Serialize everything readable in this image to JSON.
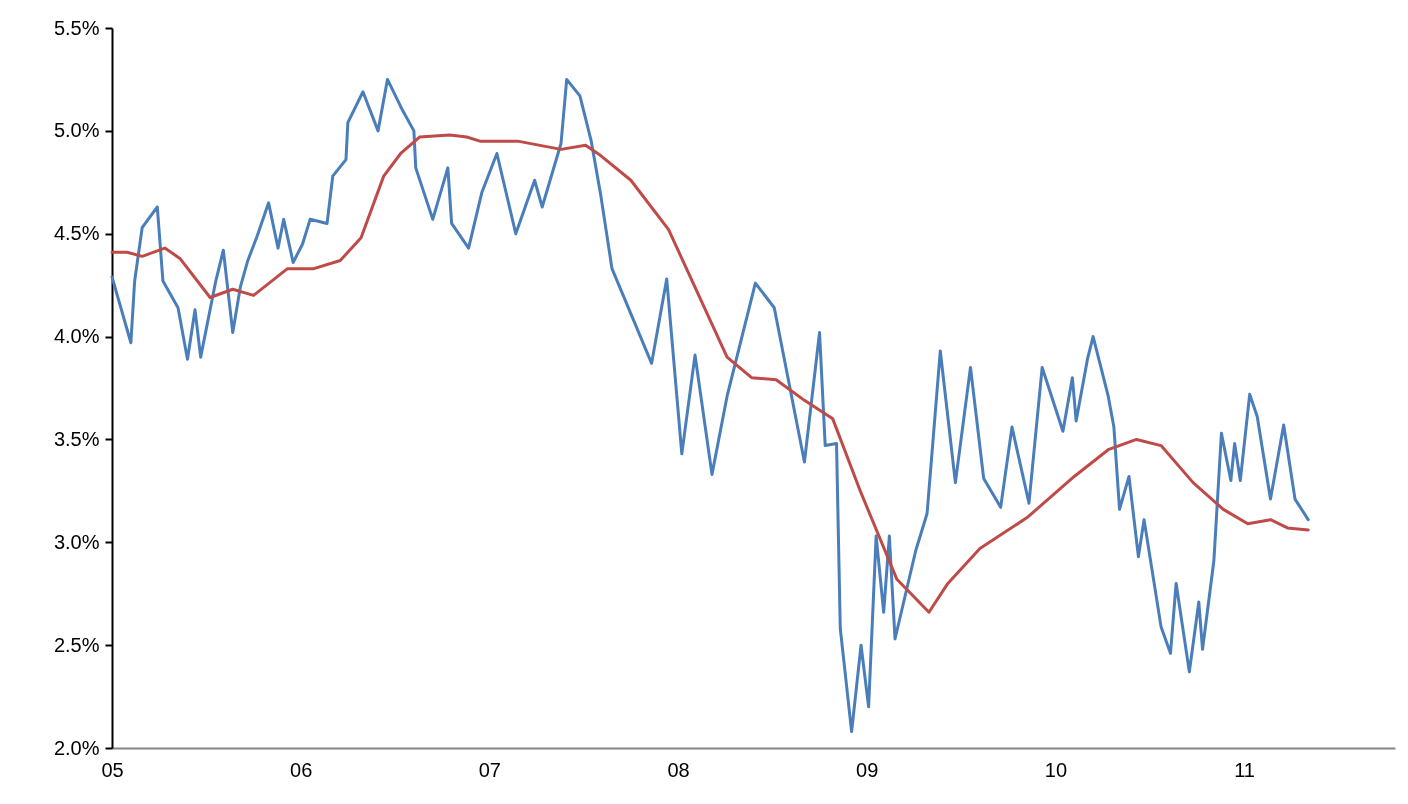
{
  "chart_data": {
    "type": "line",
    "xlim": [
      2005,
      2011.8
    ],
    "xticks": [
      {
        "value": 2005,
        "label": "05"
      },
      {
        "value": 2006,
        "label": "06"
      },
      {
        "value": 2007,
        "label": "07"
      },
      {
        "value": 2008,
        "label": "08"
      },
      {
        "value": 2009,
        "label": "09"
      },
      {
        "value": 2010,
        "label": "10"
      },
      {
        "value": 2011,
        "label": "11"
      }
    ],
    "ylim": [
      2,
      5.5
    ],
    "yticks": [
      {
        "value": 2,
        "label": "2.0%"
      },
      {
        "value": 2.5,
        "label": "2.5%"
      },
      {
        "value": 3,
        "label": "3.0%"
      },
      {
        "value": 3.5,
        "label": "3.5%"
      },
      {
        "value": 4,
        "label": "4.0%"
      },
      {
        "value": 4.5,
        "label": "4.5%"
      },
      {
        "value": 5,
        "label": "5.0%"
      },
      {
        "value": 5.5,
        "label": "5.5%"
      }
    ],
    "series": [
      {
        "color": "#4a7ebb",
        "x": [
          2005.0,
          2005.1,
          2005.12,
          2005.16,
          2005.24,
          2005.27,
          2005.35,
          2005.4,
          2005.44,
          2005.47,
          2005.55,
          2005.59,
          2005.64,
          2005.68,
          2005.72,
          2005.77,
          2005.83,
          2005.88,
          2005.91,
          2005.96,
          2006.01,
          2006.05,
          2006.14,
          2006.17,
          2006.24,
          2006.25,
          2006.33,
          2006.41,
          2006.46,
          2006.54,
          2006.6,
          2006.61,
          2006.7,
          2006.78,
          2006.8,
          2006.89,
          2006.96,
          2007.04,
          2007.14,
          2007.24,
          2007.28,
          2007.38,
          2007.41,
          2007.48,
          2007.54,
          2007.59,
          2007.65,
          2007.86,
          2007.94,
          2008.02,
          2008.09,
          2008.18,
          2008.26,
          2008.41,
          2008.51,
          2008.67,
          2008.75,
          2008.78,
          2008.84,
          2008.86,
          2008.92,
          2008.97,
          2009.01,
          2009.05,
          2009.09,
          2009.12,
          2009.15,
          2009.26,
          2009.32,
          2009.39,
          2009.47,
          2009.55,
          2009.62,
          2009.71,
          2009.77,
          2009.86,
          2009.93,
          2010.04,
          2010.09,
          2010.11,
          2010.17,
          2010.2,
          2010.28,
          2010.31,
          2010.34,
          2010.39,
          2010.44,
          2010.47,
          2010.56,
          2010.61,
          2010.64,
          2010.71,
          2010.76,
          2010.78,
          2010.84,
          2010.88,
          2010.93,
          2010.95,
          2010.98,
          2011.03,
          2011.07,
          2011.14,
          2011.21,
          2011.27,
          2011.34
        ],
        "values": [
          4.29,
          3.97,
          4.27,
          4.53,
          4.63,
          4.27,
          4.14,
          3.89,
          4.13,
          3.9,
          4.27,
          4.42,
          4.02,
          4.24,
          4.37,
          4.49,
          4.65,
          4.43,
          4.57,
          4.36,
          4.45,
          4.57,
          4.55,
          4.78,
          4.86,
          5.04,
          5.19,
          5.0,
          5.25,
          5.1,
          5.0,
          4.82,
          4.57,
          4.82,
          4.55,
          4.43,
          4.7,
          4.89,
          4.5,
          4.76,
          4.63,
          4.94,
          5.25,
          5.17,
          4.95,
          4.69,
          4.33,
          3.87,
          4.28,
          3.43,
          3.91,
          3.33,
          3.71,
          4.26,
          4.14,
          3.39,
          4.02,
          3.47,
          3.48,
          2.58,
          2.08,
          2.5,
          2.2,
          3.03,
          2.66,
          3.03,
          2.53,
          2.96,
          3.14,
          3.93,
          3.29,
          3.85,
          3.31,
          3.17,
          3.56,
          3.19,
          3.85,
          3.54,
          3.8,
          3.59,
          3.89,
          4.0,
          3.71,
          3.56,
          3.16,
          3.32,
          2.93,
          3.11,
          2.59,
          2.46,
          2.8,
          2.37,
          2.71,
          2.48,
          2.91,
          3.53,
          3.3,
          3.48,
          3.3,
          3.72,
          3.61,
          3.21,
          3.57,
          3.21,
          3.11
        ]
      },
      {
        "color": "#be4b48",
        "x": [
          2005.0,
          2005.08,
          2005.16,
          2005.28,
          2005.36,
          2005.52,
          2005.64,
          2005.75,
          2005.93,
          2006.07,
          2006.21,
          2006.32,
          2006.44,
          2006.53,
          2006.63,
          2006.79,
          2006.88,
          2006.95,
          2007.15,
          2007.38,
          2007.51,
          2007.59,
          2007.75,
          2007.95,
          2008.13,
          2008.26,
          2008.39,
          2008.52,
          2008.67,
          2008.82,
          2008.97,
          2009.16,
          2009.33,
          2009.43,
          2009.6,
          2009.85,
          2010.1,
          2010.28,
          2010.43,
          2010.56,
          2010.73,
          2010.89,
          2011.02,
          2011.14,
          2011.23,
          2011.34
        ],
        "values": [
          4.41,
          4.41,
          4.39,
          4.43,
          4.38,
          4.19,
          4.23,
          4.2,
          4.33,
          4.33,
          4.37,
          4.48,
          4.78,
          4.89,
          4.97,
          4.98,
          4.97,
          4.95,
          4.95,
          4.91,
          4.93,
          4.88,
          4.76,
          4.52,
          4.16,
          3.9,
          3.8,
          3.79,
          3.69,
          3.6,
          3.24,
          2.82,
          2.66,
          2.8,
          2.97,
          3.12,
          3.32,
          3.45,
          3.5,
          3.47,
          3.29,
          3.16,
          3.09,
          3.11,
          3.07,
          3.06
        ]
      }
    ]
  }
}
